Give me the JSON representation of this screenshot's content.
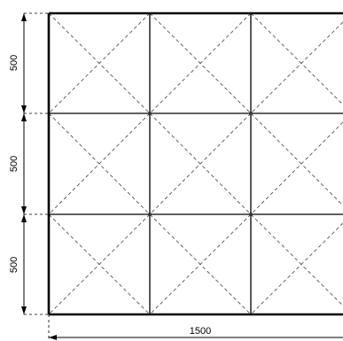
{
  "drawing": {
    "grid_rows": 3,
    "grid_cols": 3,
    "diagonal_bracing": "dashed X in every panel",
    "colors": {
      "line": "#000000",
      "dashed": "#555555",
      "background": "#ffffff"
    }
  },
  "dimensions": {
    "vertical": [
      "500",
      "500",
      "500"
    ],
    "horizontal": "1500"
  }
}
